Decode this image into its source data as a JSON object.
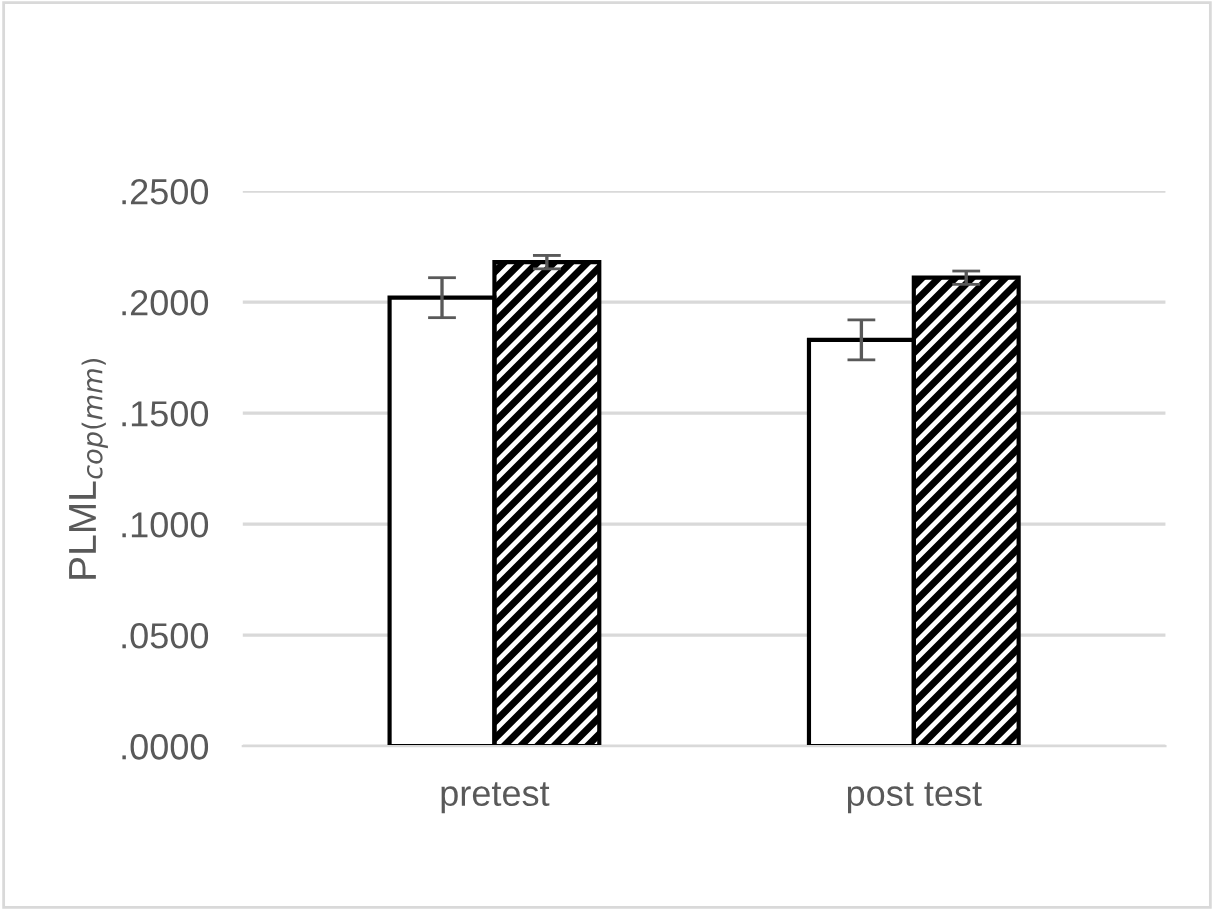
{
  "chart_data": {
    "type": "bar",
    "ylabel": "PLML$_{cop(mm)}$",
    "categories": [
      "pretest",
      "post test"
    ],
    "series": [
      {
        "color": "#ffffff",
        "values": [
          0.202,
          0.183
        ],
        "errors": [
          0.009,
          0.009
        ]
      },
      {
        "color": "#000000",
        "values": [
          0.218,
          0.211
        ],
        "errors": [
          0.003,
          0.003
        ]
      }
    ],
    "ylim": [
      0,
      0.25
    ],
    "yticks": [
      {
        "value": 0,
        "label": ".0000"
      },
      {
        "value": 0.05,
        "label": ".0500"
      },
      {
        "value": 0.1,
        "label": ".1000"
      },
      {
        "value": 0.15,
        "label": ".1500"
      },
      {
        "value": 0.2,
        "label": ".2000"
      },
      {
        "value": 0.25,
        "label": ".2500"
      }
    ],
    "grid": "y",
    "legend": false
  }
}
